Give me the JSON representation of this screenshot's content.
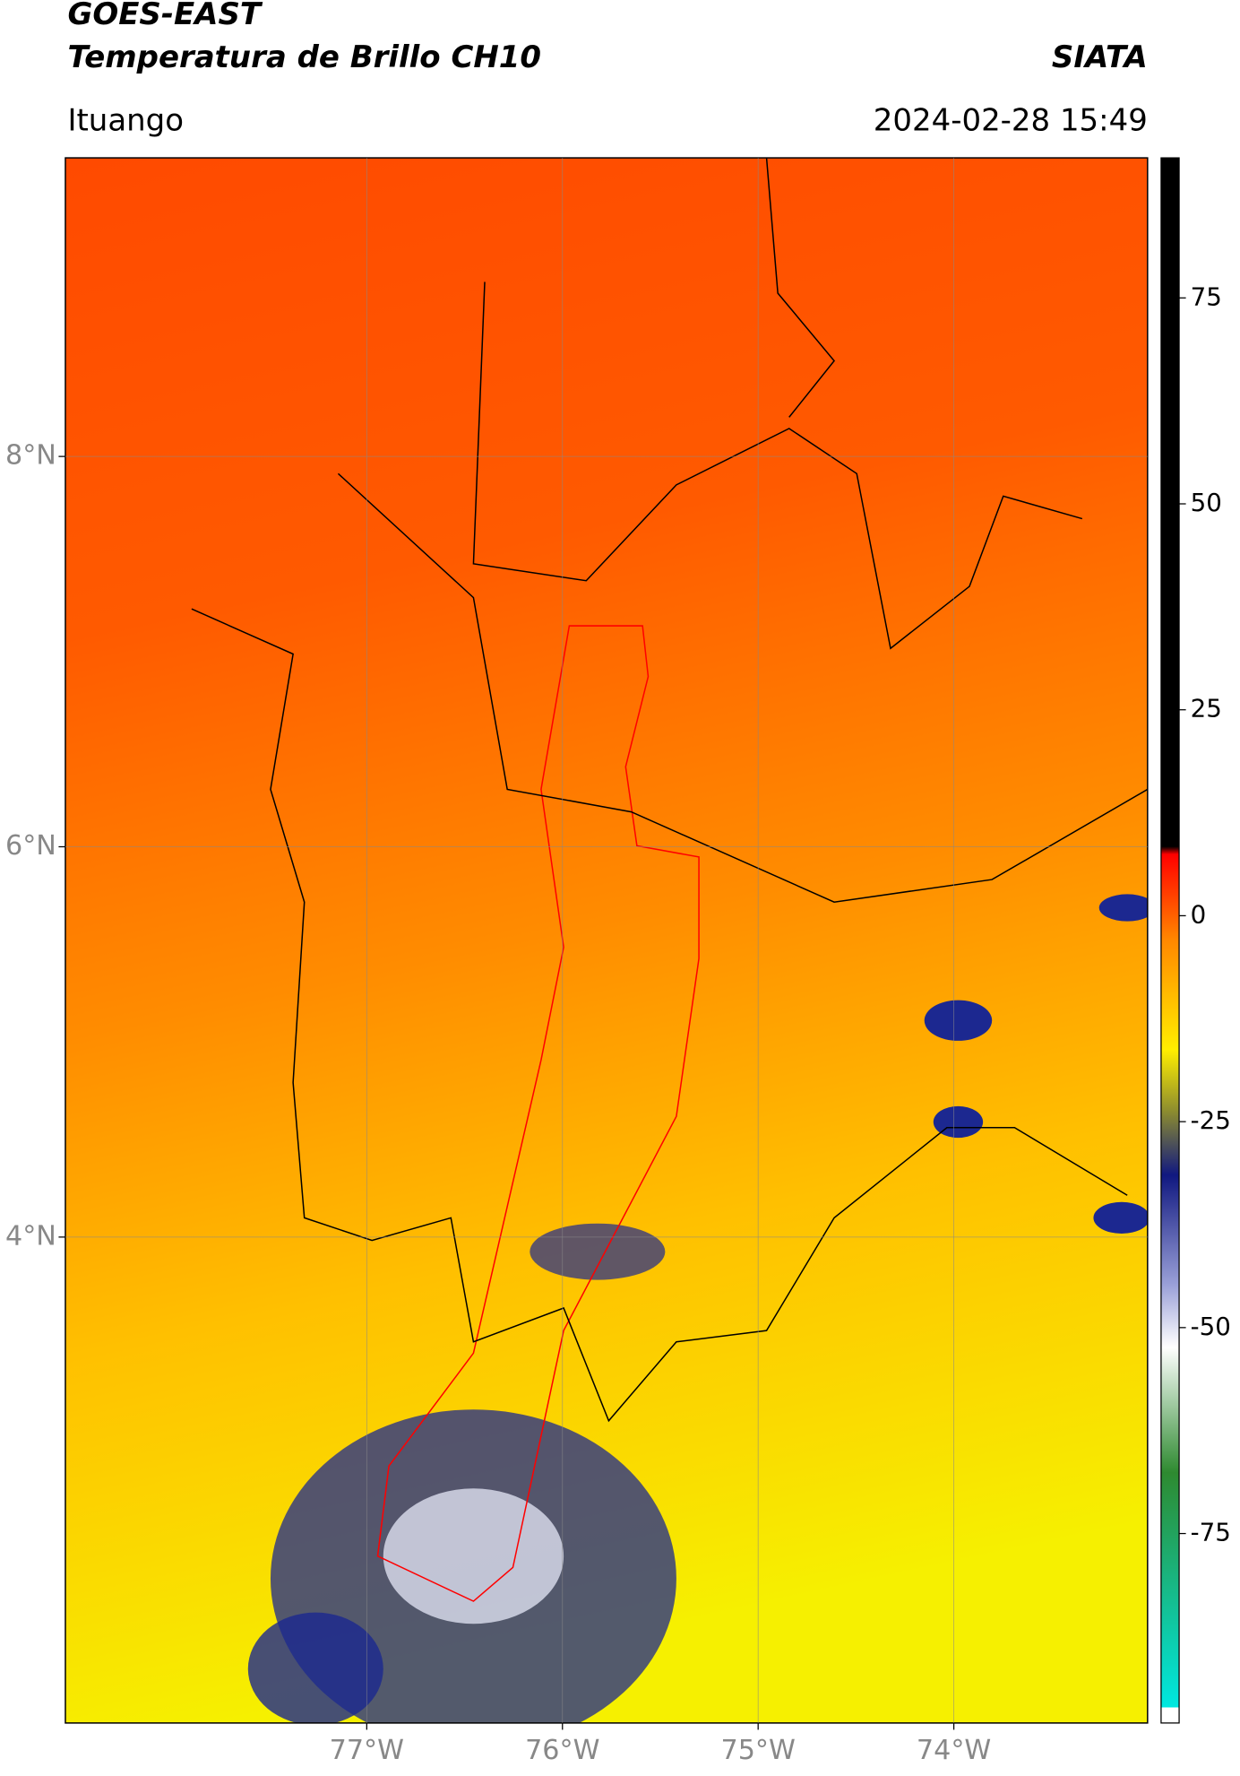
{
  "header": {
    "title": "GOES-EAST",
    "subtitle": "Temperatura de Brillo CH10",
    "source": "SIATA",
    "location": "Ituango",
    "datetime": "2024-02-28 15:49"
  },
  "chart_data": {
    "type": "map",
    "xlim": [
      -78.54,
      -73.01
    ],
    "ylim": [
      1.51,
      9.53
    ],
    "xticks": [
      {
        "value": -77,
        "label": "77°W"
      },
      {
        "value": -76,
        "label": "76°W"
      },
      {
        "value": -75,
        "label": "75°W"
      },
      {
        "value": -74,
        "label": "74°W"
      }
    ],
    "yticks": [
      {
        "value": 4,
        "label": "4°N"
      },
      {
        "value": 6,
        "label": "6°N"
      },
      {
        "value": 8,
        "label": "8°N"
      }
    ],
    "grid": true,
    "colorbar": {
      "lim": [
        -98,
        92
      ],
      "ticks": [
        -75,
        -50,
        -25,
        0,
        25,
        50,
        75
      ]
    }
  }
}
